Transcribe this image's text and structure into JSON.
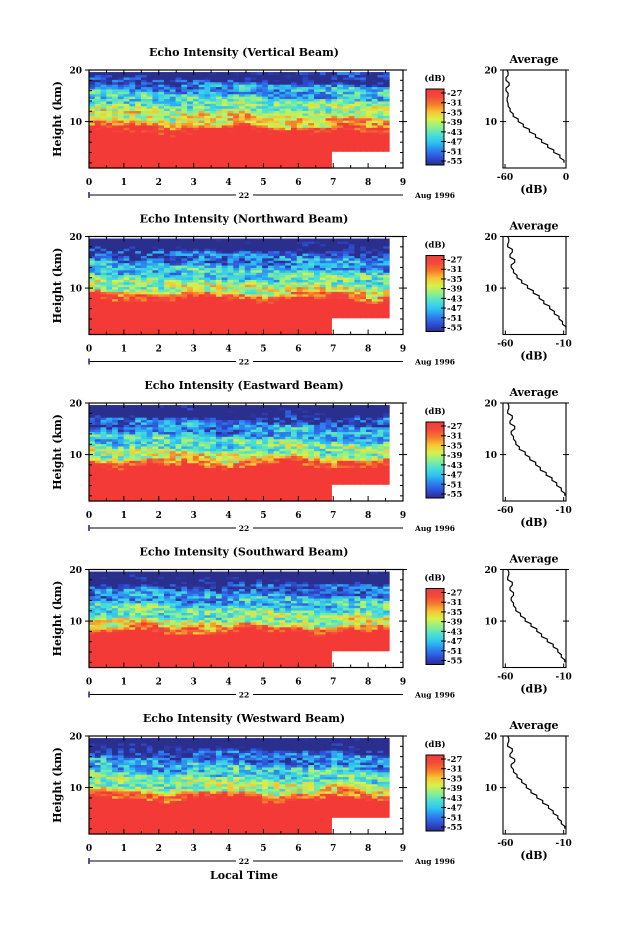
{
  "figure": {
    "xlabel": "Local Time",
    "colorbar_unit": "(dB)",
    "colorbar_ticks": [
      "-27",
      "-31",
      "-35",
      "-39",
      "-43",
      "-47",
      "-51",
      "-55"
    ],
    "colormap": [
      "#2a2e8c",
      "#2f4fd8",
      "#2c86f0",
      "#2ec4f2",
      "#4ee0d2",
      "#8ef08a",
      "#d8f04a",
      "#f6c534",
      "#f47a2a",
      "#f24a3a",
      "#f23c3c"
    ],
    "saturated_color": "#f33a36"
  },
  "chart_data": [
    {
      "type": "heatmap",
      "title": "Echo Intensity (Vertical Beam)",
      "ylabel": "Height (km)",
      "x_ticks": [
        "0",
        "1",
        "2",
        "3",
        "4",
        "5",
        "6",
        "7",
        "8",
        "9"
      ],
      "y_ticks": [
        "20",
        "10"
      ],
      "xlim": [
        0,
        9
      ],
      "ylim": [
        1,
        20
      ],
      "date_day": "22",
      "date_month": "Aug 1996",
      "avg_title": "Average",
      "avg_xlabel": "(dB)",
      "avg_xticks": [
        "-60",
        "0"
      ],
      "avg_xlim": [
        -62,
        0
      ],
      "avg_profile": {
        "height_km": [
          2,
          3,
          4,
          5,
          6,
          7,
          8,
          9,
          10,
          11,
          12,
          13,
          14,
          15,
          16,
          17,
          18,
          19,
          20
        ],
        "db": [
          -2,
          -6,
          -12,
          -18,
          -24,
          -30,
          -36,
          -42,
          -47,
          -52,
          -55,
          -57,
          -58,
          -57,
          -59,
          -56,
          -59,
          -57,
          -58
        ]
      }
    },
    {
      "type": "heatmap",
      "title": "Echo Intensity (Northward Beam)",
      "ylabel": "Height (km)",
      "x_ticks": [
        "0",
        "1",
        "2",
        "3",
        "4",
        "5",
        "6",
        "7",
        "8",
        "9"
      ],
      "y_ticks": [
        "20",
        "10"
      ],
      "xlim": [
        0,
        9
      ],
      "ylim": [
        1,
        20
      ],
      "date_day": "22",
      "date_month": "Aug 1996",
      "avg_title": "Average",
      "avg_xlabel": "(dB)",
      "avg_xticks": [
        "-60",
        "-10"
      ],
      "avg_xlim": [
        -62,
        -8
      ],
      "avg_profile": {
        "height_km": [
          2,
          3,
          4,
          5,
          6,
          7,
          8,
          9,
          10,
          11,
          12,
          13,
          14,
          15,
          16,
          17,
          18,
          19,
          20
        ],
        "db": [
          -8,
          -11,
          -14,
          -18,
          -22,
          -27,
          -31,
          -36,
          -41,
          -46,
          -50,
          -53,
          -55,
          -52,
          -56,
          -54,
          -58,
          -57,
          -58
        ]
      }
    },
    {
      "type": "heatmap",
      "title": "Echo Intensity (Eastward Beam)",
      "ylabel": "Height (km)",
      "x_ticks": [
        "0",
        "1",
        "2",
        "3",
        "4",
        "5",
        "6",
        "7",
        "8",
        "9"
      ],
      "y_ticks": [
        "20",
        "10"
      ],
      "xlim": [
        0,
        9
      ],
      "ylim": [
        1,
        20
      ],
      "date_day": "22",
      "date_month": "Aug 1996",
      "avg_title": "Average",
      "avg_xlabel": "(dB)",
      "avg_xticks": [
        "-60",
        "-10"
      ],
      "avg_xlim": [
        -62,
        -8
      ],
      "avg_profile": {
        "height_km": [
          2,
          3,
          4,
          5,
          6,
          7,
          8,
          9,
          10,
          11,
          12,
          13,
          14,
          15,
          16,
          17,
          18,
          19,
          20
        ],
        "db": [
          -9,
          -12,
          -16,
          -20,
          -25,
          -30,
          -34,
          -39,
          -43,
          -48,
          -51,
          -53,
          -55,
          -52,
          -56,
          -54,
          -58,
          -57,
          -58
        ]
      }
    },
    {
      "type": "heatmap",
      "title": "Echo Intensity (Southward Beam)",
      "ylabel": "Height (km)",
      "x_ticks": [
        "0",
        "1",
        "2",
        "3",
        "4",
        "5",
        "6",
        "7",
        "8",
        "9"
      ],
      "y_ticks": [
        "20",
        "10"
      ],
      "xlim": [
        0,
        9
      ],
      "ylim": [
        1,
        20
      ],
      "date_day": "22",
      "date_month": "Aug 1996",
      "avg_title": "Average",
      "avg_xlabel": "(dB)",
      "avg_xticks": [
        "-60",
        "-10"
      ],
      "avg_xlim": [
        -62,
        -8
      ],
      "avg_profile": {
        "height_km": [
          2,
          3,
          4,
          5,
          6,
          7,
          8,
          9,
          10,
          11,
          12,
          13,
          14,
          15,
          16,
          17,
          18,
          19,
          20
        ],
        "db": [
          -9,
          -12,
          -15,
          -19,
          -24,
          -29,
          -33,
          -38,
          -43,
          -47,
          -51,
          -53,
          -55,
          -53,
          -56,
          -54,
          -58,
          -57,
          -58
        ]
      }
    },
    {
      "type": "heatmap",
      "title": "Echo Intensity (Westward Beam)",
      "ylabel": "Height (km)",
      "x_ticks": [
        "0",
        "1",
        "2",
        "3",
        "4",
        "5",
        "6",
        "7",
        "8",
        "9"
      ],
      "y_ticks": [
        "20",
        "10"
      ],
      "xlim": [
        0,
        9
      ],
      "ylim": [
        1,
        20
      ],
      "date_day": "22",
      "date_month": "Aug 1996",
      "avg_title": "Average",
      "avg_xlabel": "(dB)",
      "avg_xticks": [
        "-60",
        "-10"
      ],
      "avg_xlim": [
        -62,
        -8
      ],
      "avg_profile": {
        "height_km": [
          2,
          3,
          4,
          5,
          6,
          7,
          8,
          9,
          10,
          11,
          12,
          13,
          14,
          15,
          16,
          17,
          18,
          19,
          20
        ],
        "db": [
          -9,
          -12,
          -15,
          -19,
          -23,
          -28,
          -33,
          -38,
          -42,
          -46,
          -50,
          -53,
          -55,
          -52,
          -56,
          -54,
          -58,
          -57,
          -58
        ]
      }
    }
  ]
}
